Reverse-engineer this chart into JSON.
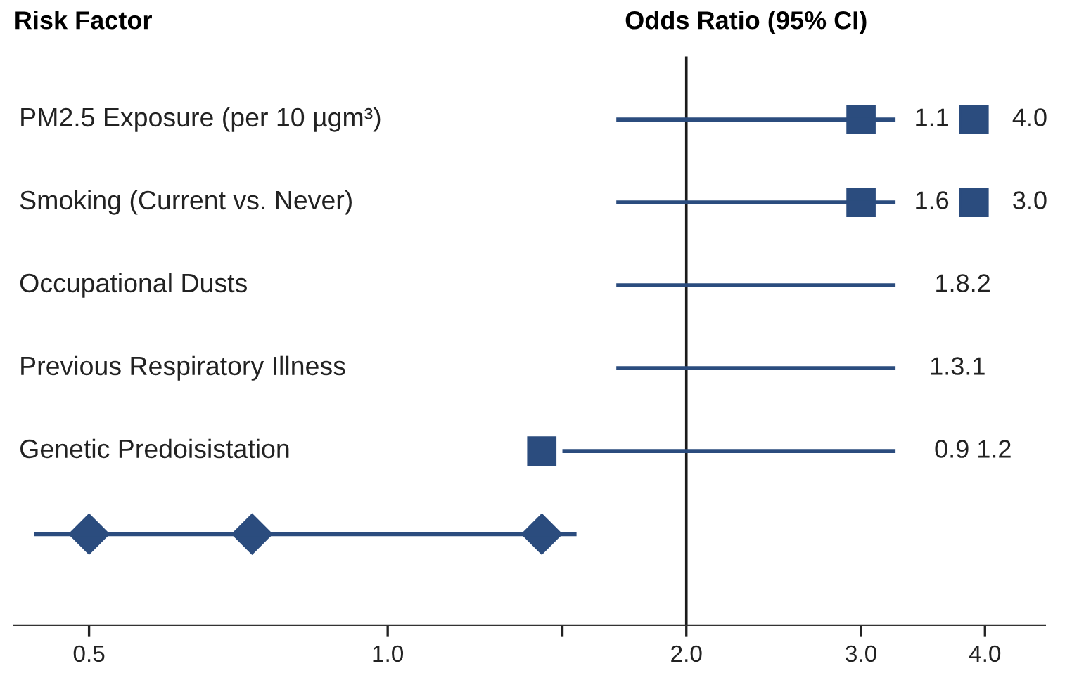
{
  "chart_data": {
    "type": "scatter",
    "orientation": "horizontal",
    "title": "Odds Ratio (95% CI)",
    "ylabel": "Risk Factor",
    "categories": [
      "PM2.5 Exposure (per 10 µgm³)",
      "Smoking (Current vs. Never)",
      "Occupational Dusts",
      "Previous Respiratory Illness",
      "Genetic Predoisistation",
      null
    ],
    "series": [
      {
        "type": "bar",
        "color": "#2b4c7e",
        "base": [
          1.7,
          1.7,
          1.7,
          1.7,
          1.5,
          0.44
        ],
        "values": [
          1.55,
          1.55,
          1.55,
          1.55,
          1.75,
          1.11
        ]
      },
      {
        "marker": "square",
        "color": "#2b4c7e",
        "values": [
          3.0,
          3.0,
          null,
          null,
          1.43,
          null
        ]
      },
      {
        "marker": "square",
        "color": "#2b4c7e",
        "values": [
          3.9,
          3.9,
          null,
          null,
          null,
          null
        ]
      },
      {
        "marker": "diamond",
        "color": "#2b4c7e",
        "values": [
          null,
          null,
          null,
          null,
          null,
          0.5
        ]
      },
      {
        "marker": "diamond",
        "color": "#2b4c7e",
        "values": [
          null,
          null,
          null,
          null,
          null,
          0.73
        ]
      },
      {
        "marker": "diamond",
        "color": "#2b4c7e",
        "values": [
          null,
          null,
          null,
          null,
          null,
          1.43
        ]
      }
    ],
    "log": "x",
    "xlim": [
      0.42,
      4.6
    ],
    "xticks": [
      0.5,
      {
        "value": 1.0,
        "label": "1.0"
      },
      {
        "value": 1.5,
        "label": null
      },
      {
        "value": 2.0,
        "label": "2.0"
      },
      {
        "value": 3.0,
        "label": "3.0"
      },
      {
        "value": 4.0,
        "label": "4.0"
      }
    ],
    "ref_lines": [
      {
        "axis": "x",
        "value": 2.0,
        "label": null,
        "color": "#1a1a1a"
      }
    ],
    "legend": false,
    "annotations": [
      "1.1",
      "4.0",
      "1.6",
      "3.0",
      "1.8.2",
      "1.3.1",
      "0.9 1.2"
    ]
  }
}
